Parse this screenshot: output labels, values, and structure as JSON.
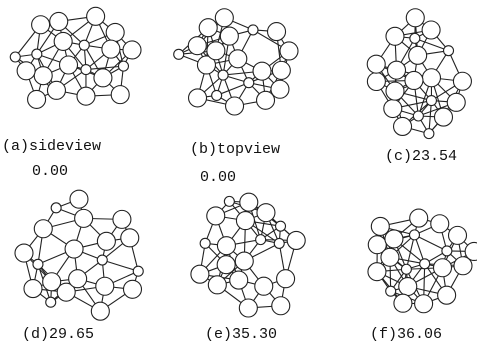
{
  "panels": [
    {
      "caption": "(a)sideview",
      "value": "0.00"
    },
    {
      "caption": "(b)topview",
      "value": "0.00"
    },
    {
      "caption": "(c)23.54"
    },
    {
      "caption": "(d)29.65"
    },
    {
      "caption": "(e)35.30"
    },
    {
      "caption": "(f)36.06"
    }
  ]
}
